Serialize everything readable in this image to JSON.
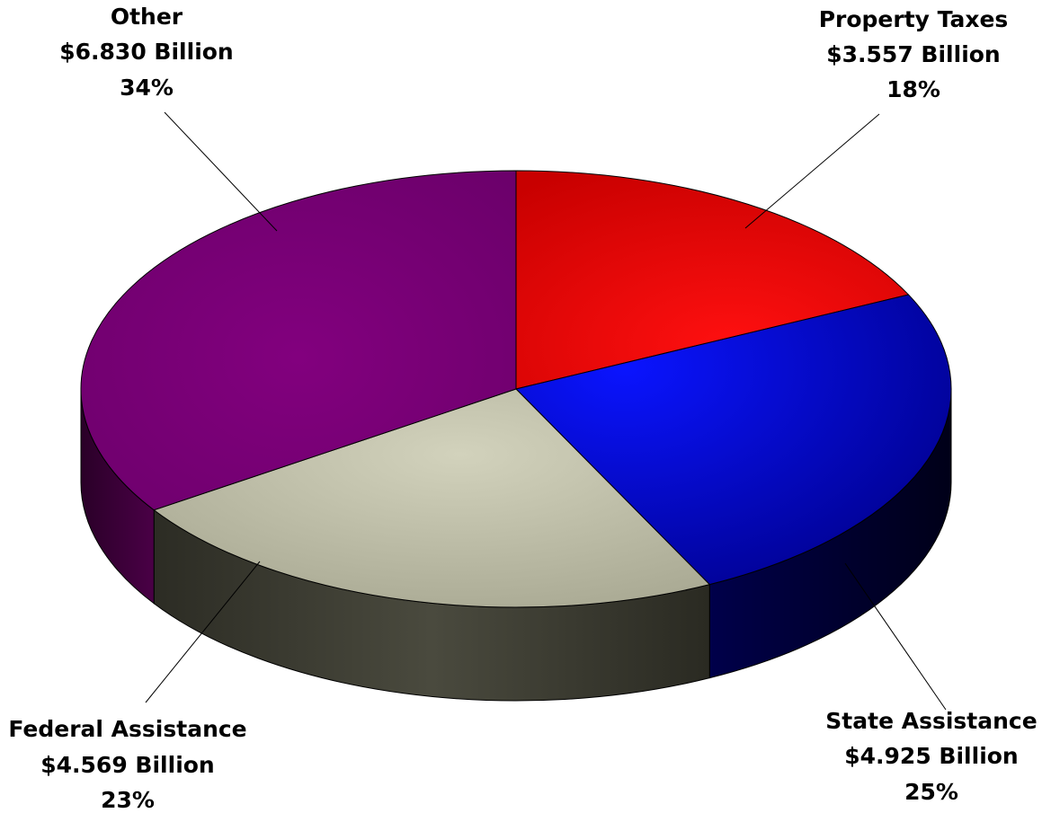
{
  "chart_data": {
    "type": "pie",
    "style": "3d",
    "title": "",
    "slices": [
      {
        "name": "Property Taxes",
        "amount": "$3.557 Billion",
        "percent": "18%",
        "value": 3.557,
        "color": "#e00000"
      },
      {
        "name": "State Assistance",
        "amount": "$4.925 Billion",
        "percent": "25%",
        "value": 4.925,
        "color": "#0000d8"
      },
      {
        "name": "Federal Assistance",
        "amount": "$4.569 Billion",
        "percent": "23%",
        "value": 4.569,
        "color": "#bfbfa8"
      },
      {
        "name": "Other",
        "amount": "$6.830 Billion",
        "percent": "34%",
        "value": 6.83,
        "color": "#780078"
      }
    ]
  }
}
